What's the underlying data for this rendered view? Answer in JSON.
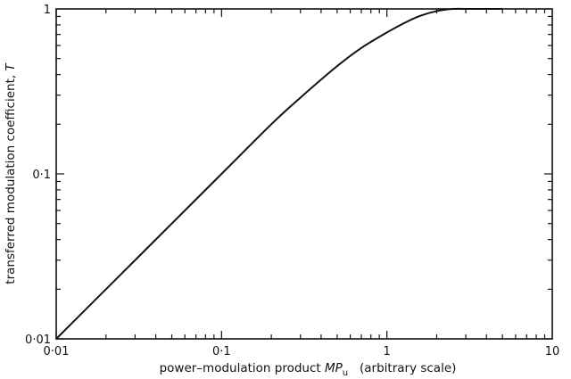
{
  "chart_data": {
    "type": "line",
    "xscale": "log",
    "yscale": "log",
    "xlim": [
      0.01,
      10
    ],
    "ylim": [
      0.01,
      1
    ],
    "grid": false,
    "xlabel_text": "power–modulation product ",
    "xlabel_var": "MP",
    "xlabel_sub": "u",
    "xlabel_suffix": "   (arbitrary scale)",
    "ylabel_text": "transferred modulation coefficient, ",
    "ylabel_var": "T",
    "x_ticks": [
      {
        "value": 0.01,
        "label": "0·01"
      },
      {
        "value": 0.1,
        "label": "0·1"
      },
      {
        "value": 1,
        "label": "1"
      },
      {
        "value": 10,
        "label": "10"
      }
    ],
    "y_ticks": [
      {
        "value": 0.01,
        "label": "0·01"
      },
      {
        "value": 0.1,
        "label": "0·1"
      },
      {
        "value": 1,
        "label": "1"
      }
    ],
    "series": [
      {
        "x": [
          0.01,
          0.02,
          0.05,
          0.1,
          0.2,
          0.3,
          0.5,
          0.7,
          1.0,
          1.3,
          1.6,
          2.0,
          2.5,
          3.0,
          4.0,
          5.0
        ],
        "y": [
          0.01,
          0.02,
          0.05,
          0.1,
          0.2,
          0.29,
          0.45,
          0.58,
          0.72,
          0.83,
          0.91,
          0.97,
          1.0,
          1.0,
          1.0,
          1.0
        ]
      }
    ]
  }
}
